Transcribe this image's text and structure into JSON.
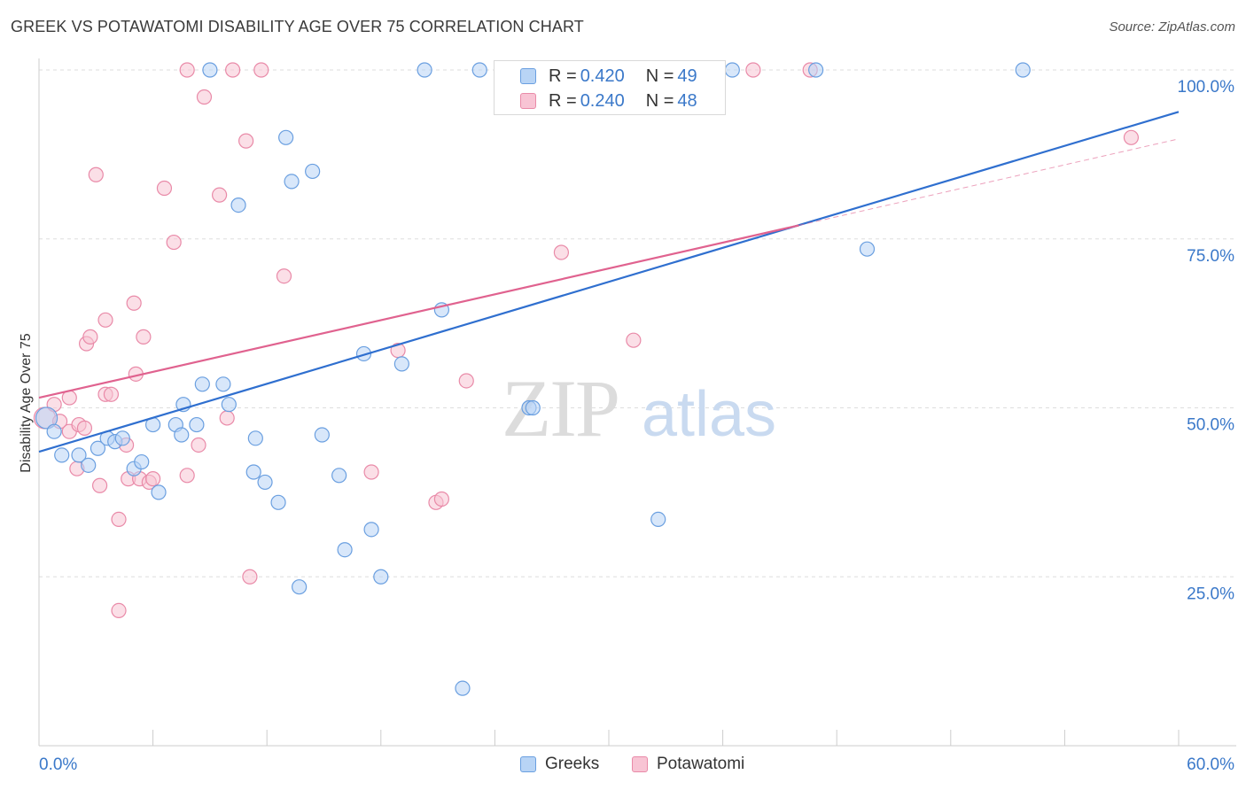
{
  "title": "GREEK VS POTAWATOMI DISABILITY AGE OVER 75 CORRELATION CHART",
  "source": "Source: ZipAtlas.com",
  "watermark": {
    "zip": "ZIP",
    "atlas": "atlas"
  },
  "legend": {
    "greeks": {
      "r_label": "R = ",
      "r_value": "0.420",
      "n_label": "N = ",
      "n_value": "49"
    },
    "potawatomi": {
      "r_label": "R = ",
      "r_value": "0.240",
      "n_label": "N = ",
      "n_value": "48"
    }
  },
  "bottom_legend": {
    "greeks": "Greeks",
    "potawatomi": "Potawatomi"
  },
  "colors": {
    "greeks_fill": "#b8d4f5",
    "greeks_stroke": "#6a9fe0",
    "greeks_line": "#2f6fcf",
    "potawatomi_fill": "#f8c4d4",
    "potawatomi_stroke": "#e98aa8",
    "potawatomi_line": "#e0628f",
    "axis_text": "#3a78c9",
    "grid": "#dddddd"
  },
  "chart_data": {
    "type": "scatter",
    "title": "GREEK VS POTAWATOMI DISABILITY AGE OVER 75 CORRELATION CHART",
    "xlabel": "",
    "ylabel": "Disability Age Over 75",
    "xlim": [
      0,
      60
    ],
    "ylim": [
      0,
      105
    ],
    "x_tick_labels": [
      "0.0%",
      "60.0%"
    ],
    "y_ticks": [
      25,
      50,
      75,
      100
    ],
    "y_tick_labels": [
      "25.0%",
      "50.0%",
      "75.0%",
      "100.0%"
    ],
    "grid": true,
    "series": [
      {
        "name": "Greeks",
        "trend": {
          "x": [
            0,
            60
          ],
          "y": [
            43.5,
            93.8
          ]
        },
        "points": [
          {
            "x": 0.4,
            "y": 48.5,
            "big": true
          },
          {
            "x": 0.8,
            "y": 46.5
          },
          {
            "x": 1.2,
            "y": 43.0
          },
          {
            "x": 2.1,
            "y": 43.0
          },
          {
            "x": 2.6,
            "y": 41.5
          },
          {
            "x": 3.1,
            "y": 44.0
          },
          {
            "x": 3.6,
            "y": 45.5
          },
          {
            "x": 4.0,
            "y": 45.0
          },
          {
            "x": 4.4,
            "y": 45.5
          },
          {
            "x": 5.0,
            "y": 41.0
          },
          {
            "x": 5.4,
            "y": 42.0
          },
          {
            "x": 6.0,
            "y": 47.5
          },
          {
            "x": 6.3,
            "y": 37.5
          },
          {
            "x": 7.2,
            "y": 47.5
          },
          {
            "x": 7.5,
            "y": 46.0
          },
          {
            "x": 7.6,
            "y": 50.5
          },
          {
            "x": 8.3,
            "y": 47.5
          },
          {
            "x": 8.6,
            "y": 53.5
          },
          {
            "x": 9.0,
            "y": 100.0
          },
          {
            "x": 9.7,
            "y": 53.5
          },
          {
            "x": 10.0,
            "y": 50.5
          },
          {
            "x": 10.5,
            "y": 80.0
          },
          {
            "x": 11.3,
            "y": 40.5
          },
          {
            "x": 11.4,
            "y": 45.5
          },
          {
            "x": 11.9,
            "y": 39.0
          },
          {
            "x": 12.6,
            "y": 36.0
          },
          {
            "x": 13.0,
            "y": 90.0
          },
          {
            "x": 13.3,
            "y": 83.5
          },
          {
            "x": 13.7,
            "y": 23.5
          },
          {
            "x": 14.4,
            "y": 85.0
          },
          {
            "x": 14.9,
            "y": 46.0
          },
          {
            "x": 15.8,
            "y": 40.0
          },
          {
            "x": 16.1,
            "y": 29.0
          },
          {
            "x": 17.1,
            "y": 58.0
          },
          {
            "x": 17.5,
            "y": 32.0
          },
          {
            "x": 18.0,
            "y": 25.0
          },
          {
            "x": 19.1,
            "y": 56.5
          },
          {
            "x": 20.3,
            "y": 100.0
          },
          {
            "x": 21.2,
            "y": 64.5
          },
          {
            "x": 22.3,
            "y": 8.5
          },
          {
            "x": 23.2,
            "y": 100.0
          },
          {
            "x": 24.5,
            "y": 100.0
          },
          {
            "x": 25.8,
            "y": 50.0
          },
          {
            "x": 26.0,
            "y": 50.0
          },
          {
            "x": 32.6,
            "y": 33.5
          },
          {
            "x": 36.5,
            "y": 100.0
          },
          {
            "x": 40.9,
            "y": 100.0
          },
          {
            "x": 43.6,
            "y": 73.5
          },
          {
            "x": 51.8,
            "y": 100.0
          }
        ]
      },
      {
        "name": "Potawatomi",
        "trend": {
          "x": [
            0,
            40
          ],
          "y": [
            51.5,
            77.0
          ]
        },
        "trend_extension": {
          "x": [
            40,
            60
          ],
          "y": [
            77.0,
            89.8
          ]
        },
        "points": [
          {
            "x": 0.3,
            "y": 48.5,
            "big": true
          },
          {
            "x": 0.8,
            "y": 50.5
          },
          {
            "x": 1.1,
            "y": 48.0
          },
          {
            "x": 1.6,
            "y": 46.5
          },
          {
            "x": 1.6,
            "y": 51.5
          },
          {
            "x": 2.0,
            "y": 41.0
          },
          {
            "x": 2.1,
            "y": 47.5
          },
          {
            "x": 2.4,
            "y": 47.0
          },
          {
            "x": 2.5,
            "y": 59.5
          },
          {
            "x": 2.7,
            "y": 60.5
          },
          {
            "x": 3.0,
            "y": 84.5
          },
          {
            "x": 3.2,
            "y": 38.5
          },
          {
            "x": 3.5,
            "y": 63.0
          },
          {
            "x": 3.5,
            "y": 52.0
          },
          {
            "x": 3.8,
            "y": 52.0
          },
          {
            "x": 4.2,
            "y": 33.5
          },
          {
            "x": 4.2,
            "y": 20.0
          },
          {
            "x": 4.6,
            "y": 44.5
          },
          {
            "x": 4.7,
            "y": 39.5
          },
          {
            "x": 5.0,
            "y": 65.5
          },
          {
            "x": 5.1,
            "y": 55.0
          },
          {
            "x": 5.3,
            "y": 39.5
          },
          {
            "x": 5.5,
            "y": 60.5
          },
          {
            "x": 5.8,
            "y": 39.0
          },
          {
            "x": 6.0,
            "y": 39.5
          },
          {
            "x": 6.6,
            "y": 82.5
          },
          {
            "x": 7.1,
            "y": 74.5
          },
          {
            "x": 7.8,
            "y": 100.0
          },
          {
            "x": 7.8,
            "y": 40.0
          },
          {
            "x": 8.4,
            "y": 44.5
          },
          {
            "x": 8.7,
            "y": 96.0
          },
          {
            "x": 9.5,
            "y": 81.5
          },
          {
            "x": 9.9,
            "y": 48.5
          },
          {
            "x": 10.2,
            "y": 100.0
          },
          {
            "x": 10.9,
            "y": 89.5
          },
          {
            "x": 11.1,
            "y": 25.0
          },
          {
            "x": 11.7,
            "y": 100.0
          },
          {
            "x": 12.9,
            "y": 69.5
          },
          {
            "x": 17.5,
            "y": 40.5
          },
          {
            "x": 18.9,
            "y": 58.5
          },
          {
            "x": 20.9,
            "y": 36.0
          },
          {
            "x": 21.2,
            "y": 36.5
          },
          {
            "x": 22.5,
            "y": 54.0
          },
          {
            "x": 27.5,
            "y": 73.0
          },
          {
            "x": 31.3,
            "y": 60.0
          },
          {
            "x": 37.6,
            "y": 100.0
          },
          {
            "x": 40.6,
            "y": 100.0
          },
          {
            "x": 57.5,
            "y": 90.0
          }
        ]
      }
    ]
  }
}
